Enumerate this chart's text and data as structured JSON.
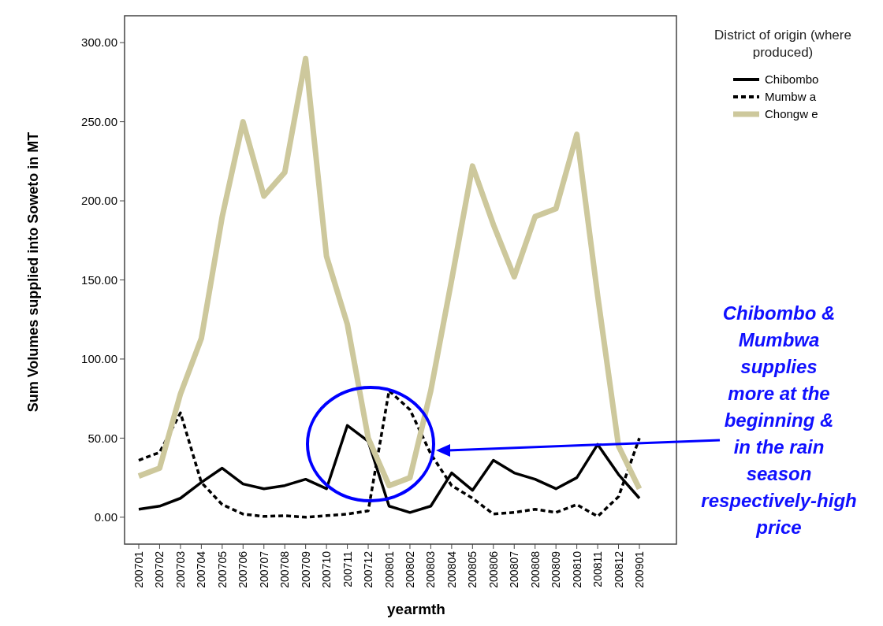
{
  "chart_data": {
    "type": "line",
    "xlabel": "yearmth",
    "ylabel": "Sum Volumes supplied into Soweto in MT",
    "legend_title": "District of origin (where produced)",
    "categories": [
      "200701",
      "200702",
      "200703",
      "200704",
      "200705",
      "200706",
      "200707",
      "200708",
      "200709",
      "200710",
      "200711",
      "200712",
      "200801",
      "200802",
      "200803",
      "200804",
      "200805",
      "200806",
      "200807",
      "200808",
      "200809",
      "200810",
      "200811",
      "200812",
      "200901"
    ],
    "series": [
      {
        "name": "Chibombo",
        "color": "#000000",
        "line_style": "solid",
        "values": [
          5,
          7,
          12,
          22,
          31,
          21,
          18,
          20,
          24,
          18,
          58,
          48,
          7,
          3,
          7,
          28,
          17,
          36,
          28,
          24,
          18,
          25,
          46,
          27,
          12
        ]
      },
      {
        "name": "Mumbw a",
        "color": "#000000",
        "line_style": "dashed",
        "values": [
          36,
          41,
          66,
          22,
          8,
          2,
          0.5,
          1,
          0,
          1,
          2,
          4,
          80,
          68,
          40,
          20,
          12,
          2,
          3,
          5,
          3,
          8,
          0.5,
          13,
          50
        ]
      },
      {
        "name": "Chongw e",
        "color": "#cdc89c",
        "line_style": "solid",
        "values": [
          26,
          31,
          78,
          113,
          190,
          250,
          203,
          218,
          290,
          165,
          122,
          50,
          20,
          25,
          80,
          150,
          222,
          185,
          152,
          190,
          195,
          242,
          140,
          45,
          18
        ]
      }
    ],
    "ylim": [
      -17,
      317
    ],
    "yticks": [
      {
        "value": 0,
        "label": "0.00"
      },
      {
        "value": 50,
        "label": "50.00"
      },
      {
        "value": 100,
        "label": "100.00"
      },
      {
        "value": 150,
        "label": "150.00"
      },
      {
        "value": 200,
        "label": "200.00"
      },
      {
        "value": 250,
        "label": "250.00"
      },
      {
        "value": 300,
        "label": "300.00"
      }
    ],
    "grid": false,
    "legend": "top right",
    "annotations": [
      "Chibombo & Mumbwa supplies more at the beginning & in the rain season respectively-high price"
    ]
  }
}
